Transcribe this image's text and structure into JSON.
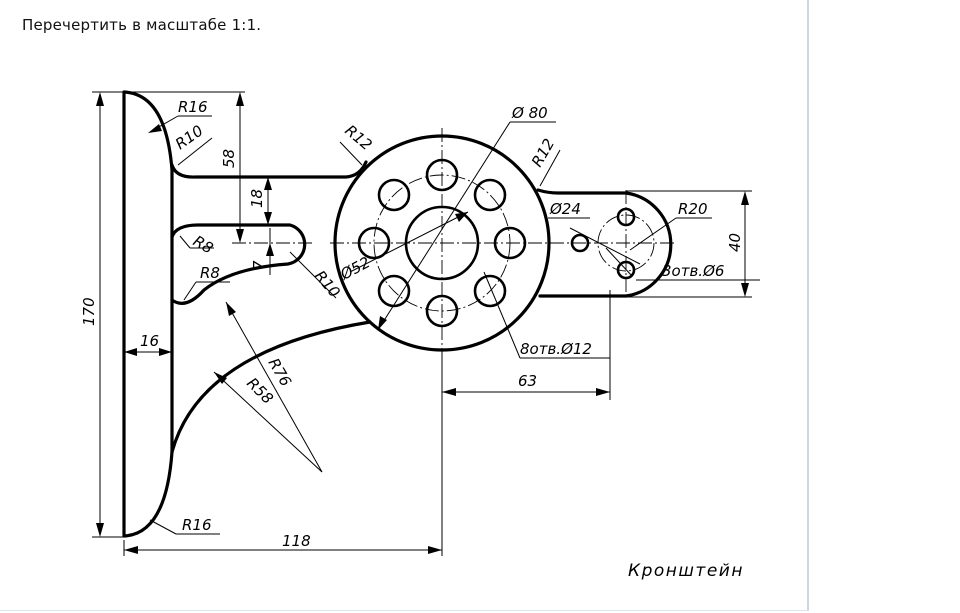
{
  "instruction": "Перечертить в масштабе 1:1.",
  "drawing": {
    "title": "Кронштейн",
    "dimensions": {
      "r16_top": "R16",
      "r10_top": "R10",
      "r12_left": "R12",
      "d80": "Ø 80",
      "r12_right": "R12",
      "d24": "Ø24",
      "r20": "R20",
      "h40": "40",
      "holes3": "3отв.Ø6",
      "holes8": "8отв.Ø12",
      "d52": "Ø52",
      "r10_slot": "R10",
      "r8_upper": "R8",
      "r8_lower": "R8",
      "h58": "58",
      "h18": "18",
      "h7": "7",
      "h170": "170",
      "w16": "16",
      "r76": "R76",
      "r58": "R58",
      "w63": "63",
      "r16_bottom": "R16",
      "w118": "118"
    }
  }
}
